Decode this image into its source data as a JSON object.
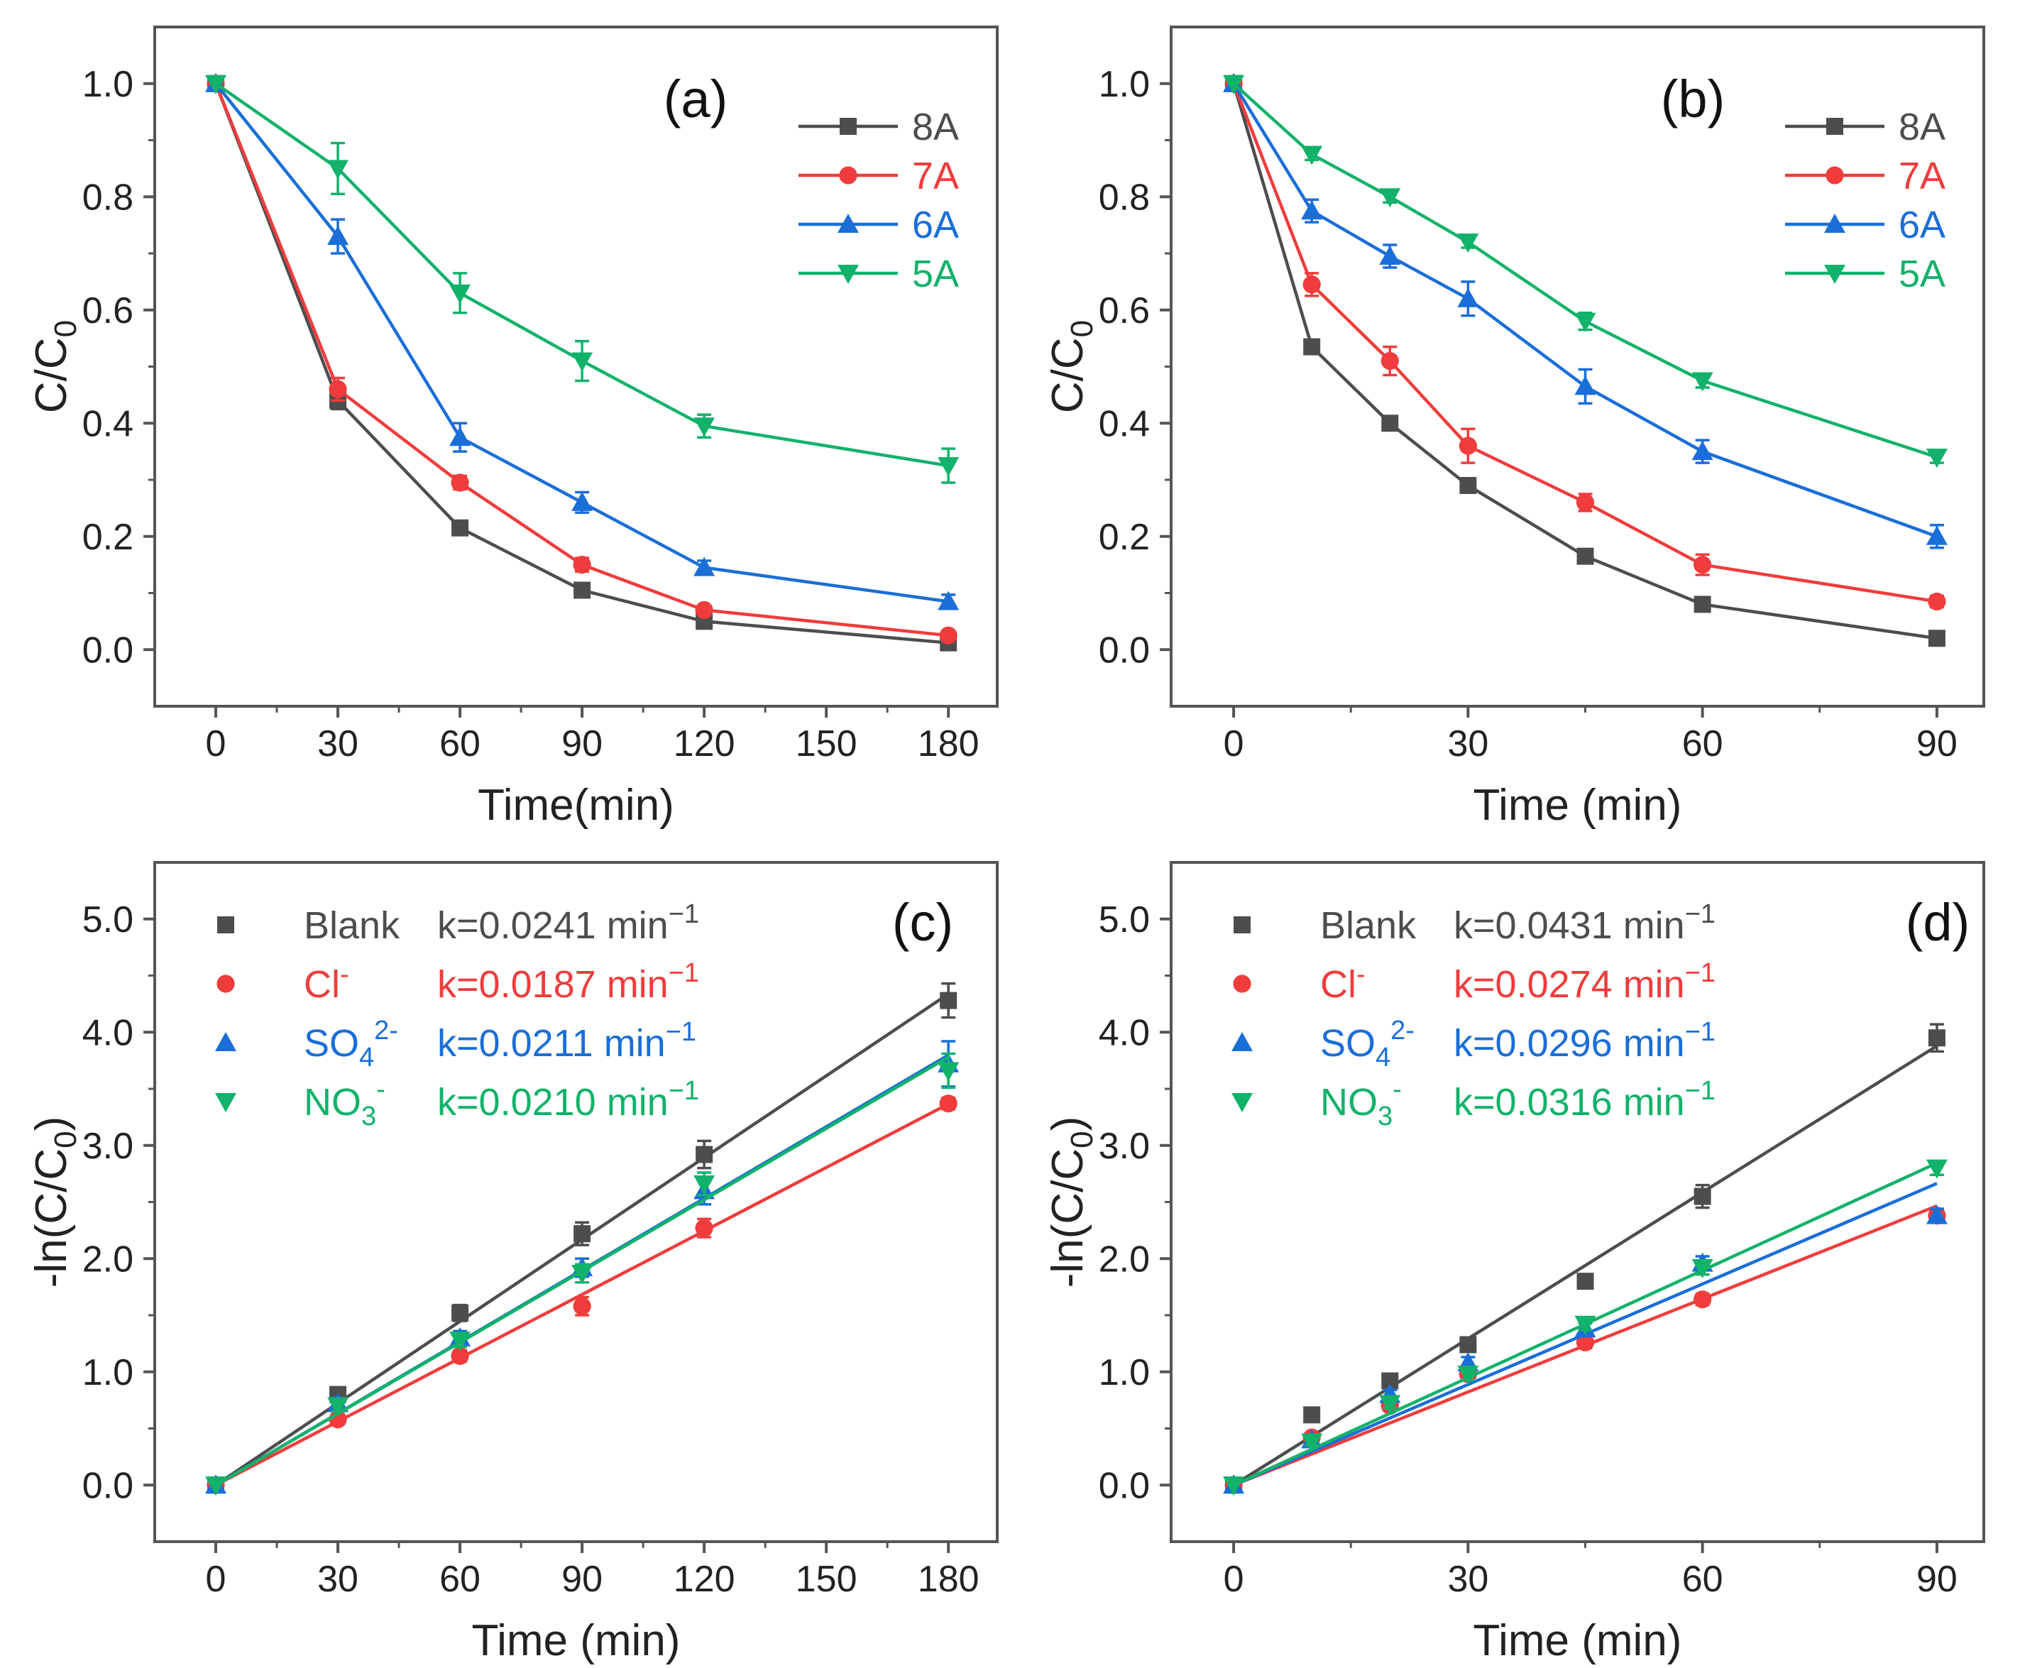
{
  "colors": {
    "black": "#4d4d4d",
    "red": "#f03c3c",
    "blue": "#1a6ed8",
    "green": "#12b26a",
    "axis": "#555555"
  },
  "chart_data": [
    {
      "id": "a",
      "type": "line",
      "panel_label": "(a)",
      "xlabel": "Time(min)",
      "ylabel_main": "C/C",
      "ylabel_sub": "0",
      "xlim": [
        -15,
        192
      ],
      "ylim": [
        -0.1,
        1.1
      ],
      "xticks": [
        0,
        30,
        60,
        90,
        120,
        150,
        180
      ],
      "yticks": [
        0.0,
        0.2,
        0.4,
        0.6,
        0.8,
        1.0
      ],
      "ytick_labels": [
        "0.0",
        "0.2",
        "0.4",
        "0.6",
        "0.8",
        "1.0"
      ],
      "legend_position": "top-right",
      "series": [
        {
          "name": "8A",
          "color": "#4d4d4d",
          "marker": "square",
          "x": [
            0,
            30,
            60,
            90,
            120,
            180
          ],
          "y": [
            1.0,
            0.44,
            0.215,
            0.105,
            0.05,
            0.012
          ],
          "err": [
            0,
            0.015,
            0.01,
            0.01,
            0.008,
            0.005
          ]
        },
        {
          "name": "7A",
          "color": "#f03c3c",
          "marker": "circle",
          "x": [
            0,
            30,
            60,
            90,
            120,
            180
          ],
          "y": [
            1.0,
            0.46,
            0.295,
            0.15,
            0.07,
            0.025
          ],
          "err": [
            0,
            0.02,
            0.012,
            0.012,
            0.008,
            0.005
          ]
        },
        {
          "name": "6A",
          "color": "#1a6ed8",
          "marker": "triangle-up",
          "x": [
            0,
            30,
            60,
            90,
            120,
            180
          ],
          "y": [
            1.0,
            0.73,
            0.375,
            0.26,
            0.145,
            0.085
          ],
          "err": [
            0,
            0.03,
            0.025,
            0.018,
            0.012,
            0.012
          ]
        },
        {
          "name": "5A",
          "color": "#12b26a",
          "marker": "triangle-down",
          "x": [
            0,
            30,
            60,
            90,
            120,
            180
          ],
          "y": [
            1.0,
            0.85,
            0.63,
            0.51,
            0.395,
            0.325
          ],
          "err": [
            0,
            0.045,
            0.035,
            0.035,
            0.02,
            0.03
          ]
        }
      ]
    },
    {
      "id": "b",
      "type": "line",
      "panel_label": "(b)",
      "xlabel": "Time (min)",
      "ylabel_main": "C/C",
      "ylabel_sub": "0",
      "xlim": [
        -8,
        96
      ],
      "ylim": [
        -0.1,
        1.1
      ],
      "xticks": [
        0,
        30,
        60,
        90
      ],
      "yticks": [
        0.0,
        0.2,
        0.4,
        0.6,
        0.8,
        1.0
      ],
      "ytick_labels": [
        "0.0",
        "0.2",
        "0.4",
        "0.6",
        "0.8",
        "1.0"
      ],
      "legend_position": "top-right",
      "series": [
        {
          "name": "8A",
          "color": "#4d4d4d",
          "marker": "square",
          "x": [
            0,
            10,
            20,
            30,
            45,
            60,
            90
          ],
          "y": [
            1.0,
            0.535,
            0.4,
            0.29,
            0.165,
            0.08,
            0.02
          ],
          "err": [
            0,
            0.012,
            0.01,
            0.01,
            0.01,
            0.008,
            0.006
          ]
        },
        {
          "name": "7A",
          "color": "#f03c3c",
          "marker": "circle",
          "x": [
            0,
            10,
            20,
            30,
            45,
            60,
            90
          ],
          "y": [
            1.0,
            0.645,
            0.51,
            0.36,
            0.26,
            0.15,
            0.085
          ],
          "err": [
            0,
            0.02,
            0.025,
            0.03,
            0.015,
            0.018,
            0.01
          ]
        },
        {
          "name": "6A",
          "color": "#1a6ed8",
          "marker": "triangle-up",
          "x": [
            0,
            10,
            20,
            30,
            45,
            60,
            90
          ],
          "y": [
            1.0,
            0.775,
            0.695,
            0.62,
            0.465,
            0.35,
            0.2
          ],
          "err": [
            0,
            0.02,
            0.02,
            0.03,
            0.03,
            0.02,
            0.02
          ]
        },
        {
          "name": "5A",
          "color": "#12b26a",
          "marker": "triangle-down",
          "x": [
            0,
            10,
            20,
            30,
            45,
            60,
            90
          ],
          "y": [
            1.0,
            0.875,
            0.8,
            0.72,
            0.58,
            0.475,
            0.34
          ],
          "err": [
            0,
            0.01,
            0.01,
            0.01,
            0.015,
            0.012,
            0.01
          ]
        }
      ]
    },
    {
      "id": "c",
      "type": "scatter",
      "panel_label": "(c)",
      "xlabel": "Time (min)",
      "ylabel_main": "-ln(C/C",
      "ylabel_sub": "0",
      "ylabel_end": ")",
      "xlim": [
        -15,
        192
      ],
      "ylim": [
        -0.5,
        5.5
      ],
      "xticks": [
        0,
        30,
        60,
        90,
        120,
        150,
        180
      ],
      "yticks": [
        0,
        1,
        2,
        3,
        4,
        5
      ],
      "ytick_labels": [
        "0.0",
        "1.0",
        "2.0",
        "3.0",
        "4.0",
        "5.0"
      ],
      "legend_position": "top-left",
      "series": [
        {
          "name": "Blank",
          "name_sup": "",
          "name_sub": "",
          "k_label": "k=0.0241 min",
          "k_sup": "−1",
          "k": 0.0241,
          "color": "#4d4d4d",
          "marker": "square",
          "x": [
            0,
            30,
            60,
            90,
            120,
            180
          ],
          "y": [
            0,
            0.8,
            1.52,
            2.22,
            2.92,
            4.28
          ],
          "err": [
            0,
            0.05,
            0.07,
            0.1,
            0.12,
            0.15
          ]
        },
        {
          "name": "Cl",
          "name_sup": "-",
          "name_sub": "",
          "k_label": "k=0.0187 min",
          "k_sup": "−1",
          "k": 0.0187,
          "color": "#f03c3c",
          "marker": "circle",
          "x": [
            0,
            30,
            60,
            90,
            120,
            180
          ],
          "y": [
            0,
            0.58,
            1.14,
            1.58,
            2.27,
            3.37
          ],
          "err": [
            0,
            0.04,
            0.05,
            0.08,
            0.08,
            0.05
          ]
        },
        {
          "name": "SO",
          "name_sup": "2-",
          "name_sub": "4",
          "k_label": "k=0.0211 min",
          "k_sup": "−1",
          "k": 0.0211,
          "color": "#1a6ed8",
          "marker": "triangle-up",
          "x": [
            0,
            30,
            60,
            90,
            120,
            180
          ],
          "y": [
            0,
            0.72,
            1.3,
            1.92,
            2.6,
            3.72
          ],
          "err": [
            0,
            0.05,
            0.06,
            0.08,
            0.12,
            0.2
          ]
        },
        {
          "name": "NO",
          "name_sup": "-",
          "name_sub": "3",
          "k_label": "k=0.0210 min",
          "k_sup": "−1",
          "k": 0.021,
          "color": "#12b26a",
          "marker": "triangle-down",
          "x": [
            0,
            30,
            60,
            90,
            120,
            180
          ],
          "y": [
            0,
            0.7,
            1.28,
            1.87,
            2.66,
            3.66
          ],
          "err": [
            0,
            0.05,
            0.06,
            0.08,
            0.1,
            0.15
          ]
        }
      ]
    },
    {
      "id": "d",
      "type": "scatter",
      "panel_label": "(d)",
      "xlabel": "Time (min)",
      "ylabel_main": "-ln(C/C",
      "ylabel_sub": "0",
      "ylabel_end": ")",
      "xlim": [
        -8,
        96
      ],
      "ylim": [
        -0.5,
        5.5
      ],
      "xticks": [
        0,
        30,
        60,
        90
      ],
      "yticks": [
        0,
        1,
        2,
        3,
        4,
        5
      ],
      "ytick_labels": [
        "0.0",
        "1.0",
        "2.0",
        "3.0",
        "4.0",
        "5.0"
      ],
      "legend_position": "top-left",
      "series": [
        {
          "name": "Blank",
          "name_sup": "",
          "name_sub": "",
          "k_label": "k=0.0431 min",
          "k_sup": "−1",
          "k": 0.0431,
          "color": "#4d4d4d",
          "marker": "square",
          "x": [
            0,
            10,
            20,
            30,
            45,
            60,
            90
          ],
          "y": [
            0,
            0.62,
            0.92,
            1.24,
            1.8,
            2.55,
            3.95
          ],
          "err": [
            0,
            0.03,
            0.05,
            0.05,
            0.06,
            0.1,
            0.12
          ]
        },
        {
          "name": "Cl",
          "name_sup": "-",
          "name_sub": "",
          "k_label": "k=0.0274 min",
          "k_sup": "−1",
          "k": 0.0274,
          "color": "#f03c3c",
          "marker": "circle",
          "x": [
            0,
            10,
            20,
            30,
            45,
            60,
            90
          ],
          "y": [
            0,
            0.42,
            0.7,
            0.98,
            1.26,
            1.64,
            2.38
          ],
          "err": [
            0,
            0.03,
            0.04,
            0.05,
            0.05,
            0.05,
            0.06
          ]
        },
        {
          "name": "SO",
          "name_sup": "2-",
          "name_sub": "4",
          "k_label": "k=0.0296 min",
          "k_sup": "−1",
          "k": 0.0296,
          "color": "#1a6ed8",
          "marker": "triangle-up",
          "x": [
            0,
            10,
            20,
            30,
            45,
            60,
            90
          ],
          "y": [
            0,
            0.4,
            0.8,
            1.08,
            1.38,
            1.96,
            2.38
          ],
          "err": [
            0,
            0.03,
            0.04,
            0.05,
            0.05,
            0.06,
            0.06
          ]
        },
        {
          "name": "NO",
          "name_sup": "-",
          "name_sub": "3",
          "k_label": "k=0.0316 min",
          "k_sup": "−1",
          "k": 0.0316,
          "color": "#12b26a",
          "marker": "triangle-down",
          "x": [
            0,
            10,
            20,
            30,
            45,
            60,
            90
          ],
          "y": [
            0,
            0.38,
            0.72,
            0.98,
            1.42,
            1.92,
            2.8
          ],
          "err": [
            0,
            0.03,
            0.04,
            0.05,
            0.05,
            0.06,
            0.06
          ]
        }
      ]
    }
  ]
}
